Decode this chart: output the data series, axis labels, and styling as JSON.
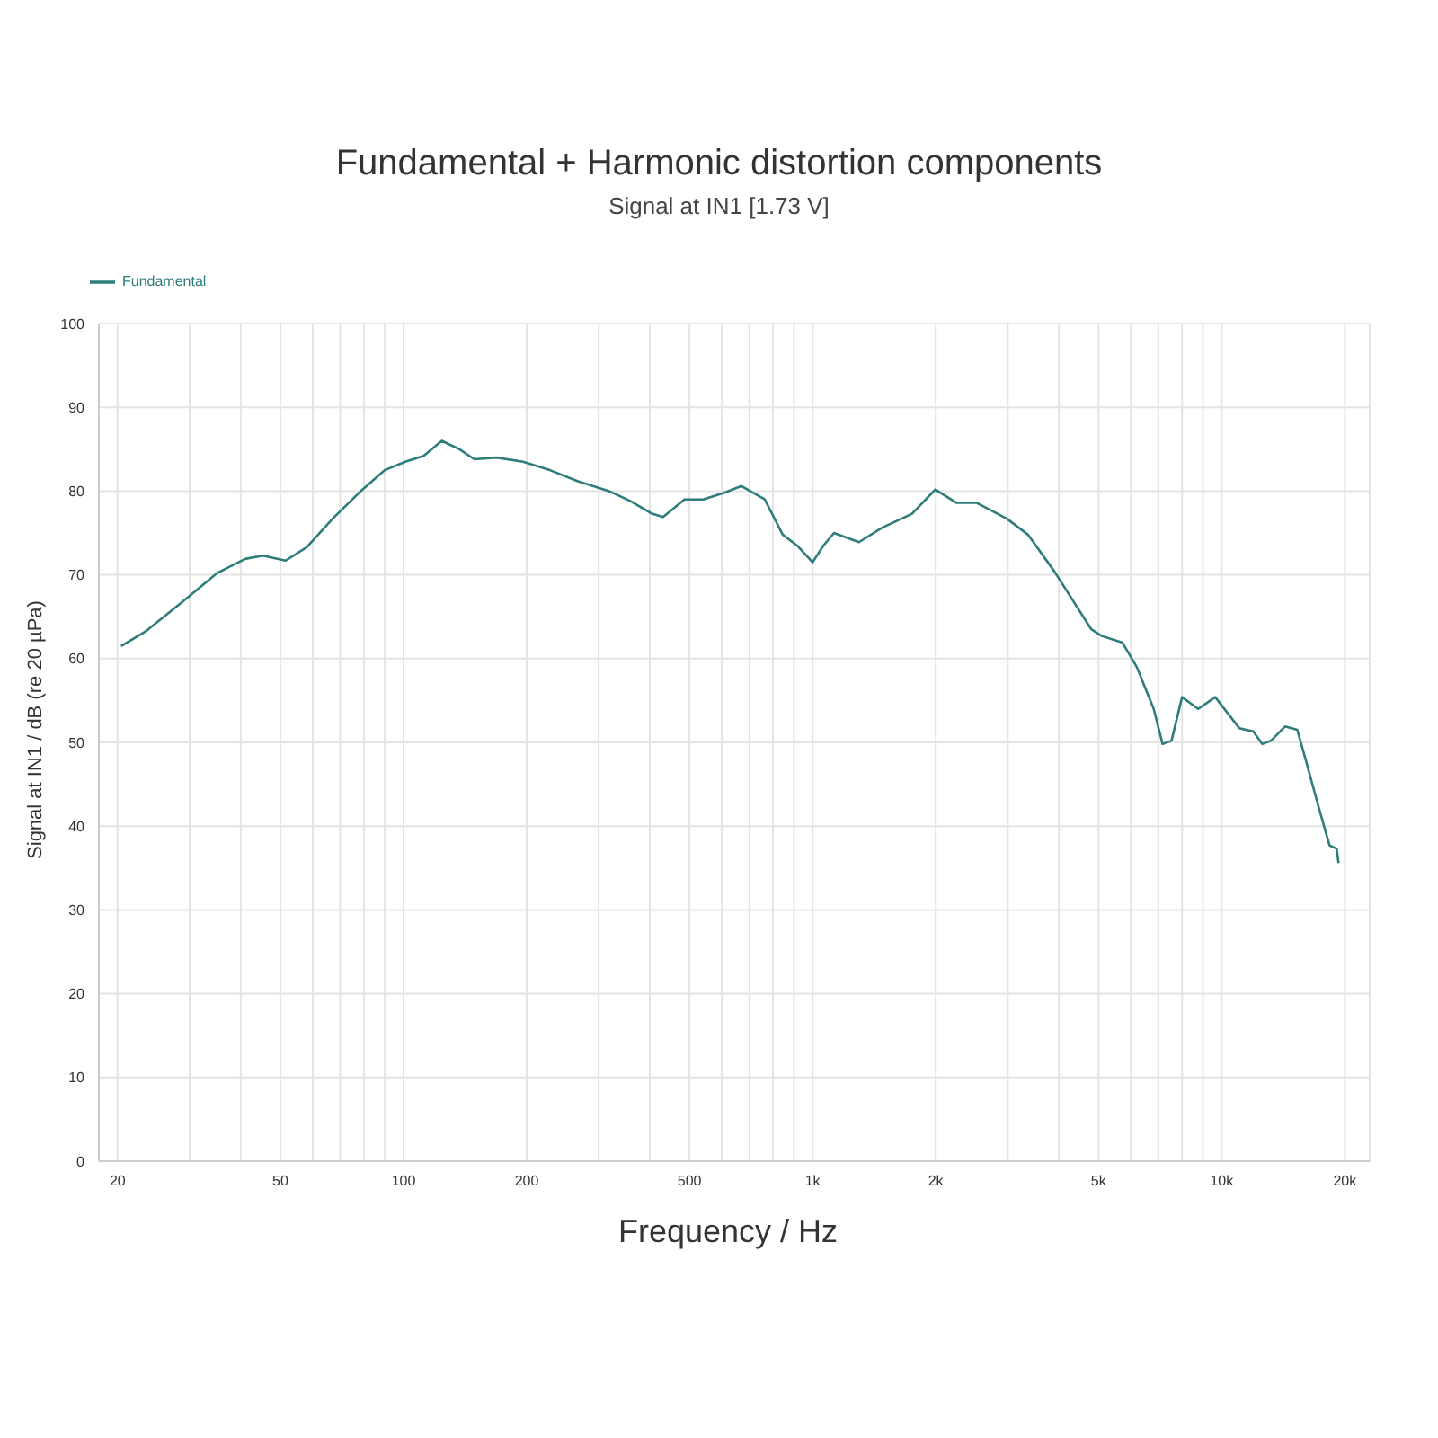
{
  "chart_data": {
    "type": "line",
    "title": "Fundamental + Harmonic distortion components",
    "subtitle": "Signal at IN1 [1.73 V]",
    "xlabel": "Frequency / Hz",
    "ylabel": "Signal at IN1 / dB (re 20 µPa)",
    "x": [
      20.4,
      23.5,
      28.7,
      35,
      41,
      45.3,
      51.5,
      58,
      67.1,
      78.6,
      90,
      101,
      112,
      124,
      137,
      149,
      169,
      196,
      228,
      266,
      318,
      359,
      405,
      431,
      486,
      540,
      608,
      670,
      764,
      845,
      916,
      1000,
      1063,
      1128,
      1298,
      1476,
      1750,
      1995,
      2245,
      2515,
      2985,
      3360,
      3900,
      4800,
      5090,
      5720,
      6200,
      6820,
      7170,
      7540,
      8000,
      8760,
      9640,
      11040,
      11950,
      12560,
      13200,
      14280,
      15300,
      16090,
      17250,
      18350,
      19100,
      19300
    ],
    "series": [
      {
        "name": "Fundamental",
        "color": "#2e7d7a",
        "values": [
          61.5,
          63.3,
          66.7,
          70.2,
          71.9,
          72.3,
          71.7,
          73.3,
          76.7,
          80,
          82.5,
          83.5,
          84.2,
          86,
          85,
          83.8,
          84,
          83.5,
          82.5,
          81.2,
          80,
          78.8,
          77.3,
          76.9,
          79,
          79,
          79.8,
          80.6,
          79,
          74.8,
          73.5,
          71.5,
          73.5,
          75,
          73.9,
          75.6,
          77.3,
          80.2,
          78.6,
          78.6,
          76.7,
          74.8,
          70.4,
          63.5,
          62.7,
          61.9,
          59,
          54,
          49.8,
          50.2,
          55.4,
          54,
          55.4,
          51.7,
          51.3,
          49.8,
          50.2,
          51.9,
          51.5,
          47.7,
          42.3,
          37.7,
          37.3,
          35.6
        ]
      }
    ],
    "log": "x",
    "xlim": [
      18,
      23000
    ],
    "ylim": [
      0,
      100
    ],
    "xticks": [
      20,
      {
        "value": 30,
        "label": null
      },
      {
        "value": 40,
        "label": null
      },
      50,
      {
        "value": 60,
        "label": null
      },
      {
        "value": 70,
        "label": null
      },
      {
        "value": 80,
        "label": null
      },
      {
        "value": 90,
        "label": null
      },
      100,
      200,
      {
        "value": 300,
        "label": null
      },
      {
        "value": 400,
        "label": null
      },
      500,
      {
        "value": 600,
        "label": null
      },
      {
        "value": 700,
        "label": null
      },
      {
        "value": 800,
        "label": null
      },
      {
        "value": 900,
        "label": null
      },
      {
        "value": 1000,
        "label": "1k"
      },
      {
        "value": 2000,
        "label": "2k"
      },
      {
        "value": 3000,
        "label": null
      },
      {
        "value": 4000,
        "label": null
      },
      {
        "value": 5000,
        "label": "5k"
      },
      {
        "value": 6000,
        "label": null
      },
      {
        "value": 7000,
        "label": null
      },
      {
        "value": 8000,
        "label": null
      },
      {
        "value": 9000,
        "label": null
      },
      {
        "value": 10000,
        "label": "10k"
      },
      {
        "value": 20000,
        "label": "20k"
      }
    ],
    "yticks": [
      0,
      10,
      20,
      30,
      40,
      50,
      60,
      70,
      80,
      90,
      100
    ],
    "grid": true,
    "legend": "top left",
    "marker": "none",
    "line_style": "solid"
  }
}
